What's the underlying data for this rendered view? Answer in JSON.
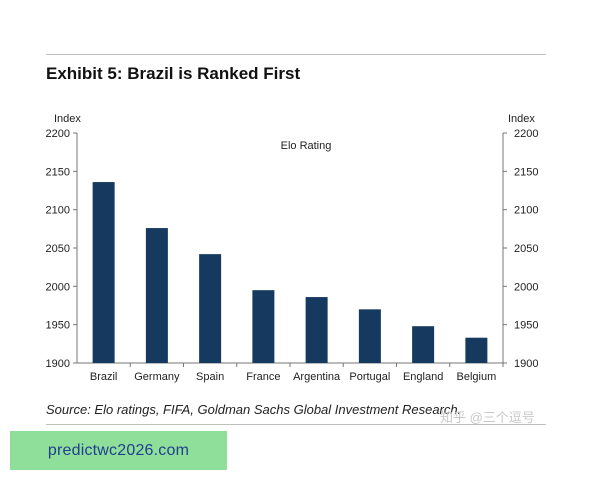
{
  "exhibit_title": "Exhibit 5: Brazil is Ranked First",
  "source_note": "Source:  Elo ratings, FIFA, Goldman Sachs Global Investment Research.",
  "watermark": "知乎 @三个逗号",
  "site_badge": "predictwc2026.com",
  "colors": {
    "bar": "#163a5f",
    "badge_bg": "#8fdf9a",
    "badge_text": "#1f3f8f"
  },
  "chart_data": {
    "type": "bar",
    "title": "Elo Rating",
    "xlabel": "",
    "ylabel": "Index",
    "ylabel_right": "Index",
    "ylim": [
      1900,
      2200
    ],
    "yticks": [
      1900,
      1950,
      2000,
      2050,
      2100,
      2150,
      2200
    ],
    "categories": [
      "Brazil",
      "Germany",
      "Spain",
      "France",
      "Argentina",
      "Portugal",
      "England",
      "Belgium"
    ],
    "values": [
      2136,
      2076,
      2042,
      1995,
      1986,
      1970,
      1948,
      1933
    ],
    "grid": false,
    "legend": "top-center"
  }
}
